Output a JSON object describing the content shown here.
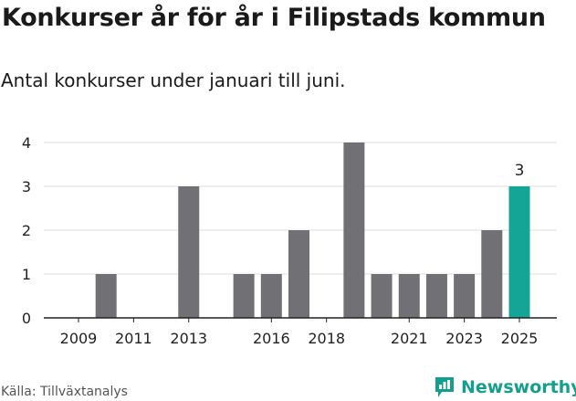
{
  "header": {
    "title": "Konkurser år för år i Filipstads kommun",
    "subtitle": "Antal konkurser under januari till juni."
  },
  "chart_data": {
    "type": "bar",
    "title": "Konkurser år för år i Filipstads kommun",
    "subtitle": "Antal konkurser under januari till juni.",
    "categories": [
      "2009",
      "2010",
      "2011",
      "2012",
      "2013",
      "2014",
      "2015",
      "2016",
      "2017",
      "2018",
      "2019",
      "2020",
      "2021",
      "2022",
      "2023",
      "2024",
      "2025"
    ],
    "values": [
      0,
      1,
      0,
      0,
      3,
      0,
      1,
      1,
      2,
      0,
      4,
      1,
      1,
      1,
      1,
      2,
      3
    ],
    "x_tick_labels": [
      "2009",
      "2011",
      "2013",
      "2016",
      "2018",
      "2021",
      "2023",
      "2025"
    ],
    "y_ticks": [
      0,
      1,
      2,
      3,
      4
    ],
    "ylim": [
      0,
      4
    ],
    "xlabel": "",
    "ylabel": "",
    "grid": "horizontal",
    "highlight": {
      "category": "2025",
      "label": "3"
    },
    "colors": {
      "bar": "#717075",
      "highlight": "#14a597",
      "grid": "#dedede",
      "axis": "#222222"
    }
  },
  "footer": {
    "source": "Källa: Tillväxtanalys",
    "brand": "Newsworthy",
    "brand_icon": "newsworthy-logo-icon",
    "brand_color": "#139e8e"
  }
}
